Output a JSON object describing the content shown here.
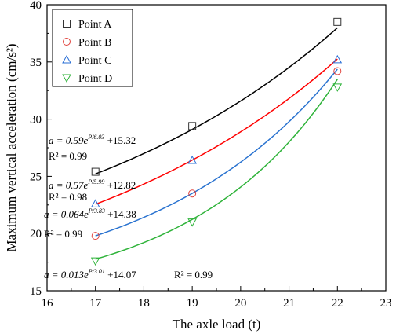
{
  "chart_data": {
    "type": "scatter",
    "xlabel": "The axle load (t)",
    "ylabel": "Maximum vertical acceleration (cm/s²)",
    "xlim": [
      16,
      23
    ],
    "ylim": [
      15,
      40
    ],
    "xticks": [
      "16",
      "17",
      "18",
      "19",
      "20",
      "21",
      "22",
      "23"
    ],
    "yticks": [
      "15",
      "20",
      "25",
      "30",
      "35",
      "40"
    ],
    "grid": false,
    "legend": "top-left",
    "series": [
      {
        "name": "Point A",
        "marker": "square",
        "color": "#333333",
        "curve_color": "#000000",
        "x": [
          17,
          19,
          22
        ],
        "y": [
          25.4,
          29.4,
          38.5
        ],
        "fit": {
          "a": 0.59,
          "b": 6.03,
          "c": 15.32
        },
        "eq_parts": [
          "a = 0.59e",
          "P/6.03",
          " +15.32"
        ],
        "r2": "R² = 0.99"
      },
      {
        "name": "Point B",
        "marker": "circle",
        "color": "#e0403a",
        "curve_color": "#ff0000",
        "x": [
          17,
          19,
          22
        ],
        "y": [
          19.8,
          23.5,
          34.2
        ],
        "fit": {
          "a": 0.57,
          "b": 5.99,
          "c": 12.82
        },
        "eq_parts": [
          "a = 0.57e",
          "P/5.99",
          " +12.82"
        ],
        "r2": "R² = 0.98"
      },
      {
        "name": "Point C",
        "marker": "triangle-up",
        "color": "#2a6fd6",
        "curve_color": "#2a73d0",
        "x": [
          17,
          19,
          22
        ],
        "y": [
          22.6,
          26.4,
          35.2
        ],
        "fit": {
          "a": 0.064,
          "b": 3.83,
          "c": 14.38
        },
        "eq_parts": [
          "a = 0.064e",
          "P/3.83",
          " +14.38"
        ],
        "r2": "R² = 0.99"
      },
      {
        "name": "Point D",
        "marker": "triangle-down",
        "color": "#2fb33a",
        "curve_color": "#2fb33a",
        "x": [
          17,
          19,
          22
        ],
        "y": [
          17.6,
          21.0,
          32.8
        ],
        "fit": {
          "a": 0.013,
          "b": 3.01,
          "c": 14.07
        },
        "eq_parts": [
          "a = 0.013e",
          "P/3.01",
          " +14.07"
        ],
        "r2": "R² = 0.99"
      }
    ]
  }
}
